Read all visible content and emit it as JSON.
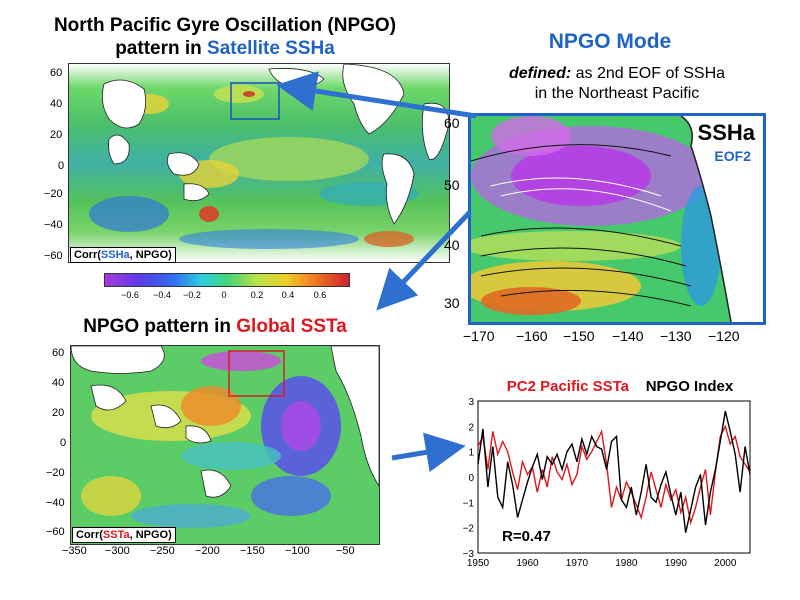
{
  "colors": {
    "accent_blue": "#1f63c6",
    "accent_red": "#e0161d",
    "arrow_blue": "#2f6fd0",
    "series_red": "#e0161d",
    "series_black": "#000000"
  },
  "top_left": {
    "title_line1": "North Pacific Gyre Oscillation (NPGO)",
    "title_line2_prefix": "pattern in ",
    "title_line2_highlight": "Satellite SSHa",
    "y_ticks": [
      "60",
      "40",
      "20",
      "0",
      "−20",
      "−40",
      "−60"
    ],
    "corr_prefix": "Corr(",
    "corr_var": "SSHa",
    "corr_suffix": ", NPGO)",
    "colorbar_ticks": [
      "−0.6",
      "−0.4",
      "−0.2",
      "0",
      "0.2",
      "0.4",
      "0.6"
    ]
  },
  "top_right": {
    "title": "NPGO Mode",
    "defined_label": "defined:",
    "defined_text": " as 2nd EOF of SSHa",
    "defined_line2": "in the Northeast Pacific",
    "panel_label": "SSHa",
    "panel_sublabel": "EOF2",
    "y_ticks": [
      "60",
      "50",
      "40",
      "30"
    ],
    "x_ticks": [
      "−170",
      "−160",
      "−150",
      "−140",
      "−130",
      "−120"
    ]
  },
  "bottom_left": {
    "title_prefix": "NPGO pattern in ",
    "title_highlight": "Global SSTa",
    "y_ticks": [
      "60",
      "40",
      "20",
      "0",
      "−20",
      "−40",
      "−60"
    ],
    "x_ticks": [
      "−350",
      "−300",
      "−250",
      "−200",
      "−150",
      "−100",
      "−50"
    ],
    "corr_prefix": "Corr(",
    "corr_var": "SSTa",
    "corr_suffix": ", NPGO)"
  },
  "chart_data": {
    "type": "line",
    "title_series1": "PC2 Pacific SSTa",
    "title_series2": "NPGO Index",
    "annotation": "R=0.47",
    "xlim": [
      1950,
      2005
    ],
    "ylim": [
      -3,
      3
    ],
    "x_ticks": [
      "1950",
      "1960",
      "1970",
      "1980",
      "1990",
      "2000"
    ],
    "y_ticks": [
      "3",
      "2",
      "1",
      "0",
      "−1",
      "−2",
      "−3"
    ],
    "series": [
      {
        "name": "PC2 Pacific SSTa",
        "color": "#e0161d",
        "x": [
          1950,
          1951,
          1952,
          1953,
          1954,
          1955,
          1956,
          1957,
          1958,
          1959,
          1960,
          1961,
          1962,
          1963,
          1964,
          1965,
          1966,
          1967,
          1968,
          1969,
          1970,
          1971,
          1972,
          1973,
          1974,
          1975,
          1976,
          1977,
          1978,
          1979,
          1980,
          1981,
          1982,
          1983,
          1984,
          1985,
          1986,
          1987,
          1988,
          1989,
          1990,
          1991,
          1992,
          1993,
          1994,
          1995,
          1996,
          1997,
          1998,
          1999,
          2000,
          2001,
          2002,
          2003,
          2004,
          2005
        ],
        "values": [
          1.2,
          1.6,
          0.3,
          1.8,
          0.9,
          1.4,
          1.0,
          0.2,
          -0.5,
          0.6,
          0.1,
          0.4,
          -0.6,
          0.3,
          -0.4,
          0.8,
          0.2,
          -0.1,
          0.5,
          -0.3,
          0.1,
          1.2,
          0.7,
          1.0,
          1.4,
          1.8,
          0.5,
          -1.2,
          -0.4,
          -0.9,
          -0.2,
          -0.6,
          -1.1,
          -1.6,
          -0.8,
          0.2,
          -0.5,
          -1.2,
          -0.3,
          -0.9,
          -0.5,
          -1.4,
          -0.8,
          -1.8,
          -1.2,
          -0.4,
          0.3,
          -1.5,
          0.2,
          1.6,
          2.0,
          1.3,
          1.6,
          0.8,
          0.5,
          0.2
        ]
      },
      {
        "name": "NPGO Index",
        "color": "#000000",
        "x": [
          1950,
          1951,
          1952,
          1953,
          1954,
          1955,
          1956,
          1957,
          1958,
          1959,
          1960,
          1961,
          1962,
          1963,
          1964,
          1965,
          1966,
          1967,
          1968,
          1969,
          1970,
          1971,
          1972,
          1973,
          1974,
          1975,
          1976,
          1977,
          1978,
          1979,
          1980,
          1981,
          1982,
          1983,
          1984,
          1985,
          1986,
          1987,
          1988,
          1989,
          1990,
          1991,
          1992,
          1993,
          1994,
          1995,
          1996,
          1997,
          1998,
          1999,
          2000,
          2001,
          2002,
          2003,
          2004,
          2005
        ],
        "values": [
          0.5,
          1.9,
          -0.4,
          1.2,
          -0.8,
          -1.2,
          0.6,
          -0.3,
          -1.6,
          -0.9,
          -0.2,
          0.4,
          0.9,
          -0.1,
          0.8,
          0.5,
          0.9,
          0.3,
          1.0,
          1.3,
          0.6,
          1.5,
          0.9,
          1.6,
          1.2,
          1.1,
          0.3,
          1.4,
          1.6,
          -0.9,
          -1.2,
          -0.4,
          -1.5,
          -0.6,
          0.5,
          -0.8,
          -1.0,
          -0.3,
          0.2,
          -0.7,
          -1.5,
          -0.6,
          -2.2,
          -1.3,
          -0.4,
          0.1,
          -1.9,
          -0.6,
          0.3,
          1.4,
          2.6,
          1.8,
          0.9,
          -0.6,
          1.2,
          0.1
        ]
      }
    ]
  }
}
